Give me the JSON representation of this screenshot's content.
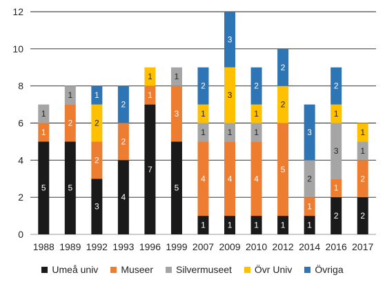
{
  "chart_data": {
    "type": "bar",
    "stacked": true,
    "title": "",
    "xlabel": "",
    "ylabel": "",
    "ylim": [
      0,
      12
    ],
    "yticks": [
      0,
      2,
      4,
      6,
      8,
      10,
      12
    ],
    "grid": true,
    "legend_position": "bottom",
    "categories": [
      "1988",
      "1989",
      "1992",
      "1993",
      "1996",
      "1999",
      "2007",
      "2009",
      "2010",
      "2012",
      "2014",
      "2016",
      "2017"
    ],
    "series": [
      {
        "name": "Umeå univ",
        "color": "#1a1a1a",
        "values": [
          5,
          5,
          3,
          4,
          7,
          5,
          1,
          1,
          1,
          1,
          1,
          2,
          2
        ]
      },
      {
        "name": "Museer",
        "color": "#ed7d31",
        "values": [
          1,
          2,
          2,
          2,
          1,
          3,
          4,
          4,
          4,
          5,
          1,
          1,
          2
        ]
      },
      {
        "name": "Silvermuseet",
        "color": "#a5a5a5",
        "values": [
          1,
          1,
          0,
          0,
          0,
          1,
          1,
          1,
          1,
          0,
          2,
          3,
          1
        ]
      },
      {
        "name": "Övr Univ",
        "color": "#ffc000",
        "values": [
          0,
          0,
          2,
          0,
          1,
          0,
          1,
          3,
          1,
          2,
          0,
          1,
          1
        ]
      },
      {
        "name": "Övriga",
        "color": "#2e75b6",
        "values": [
          0,
          0,
          1,
          2,
          0,
          0,
          2,
          3,
          2,
          2,
          3,
          2,
          0
        ]
      }
    ]
  }
}
